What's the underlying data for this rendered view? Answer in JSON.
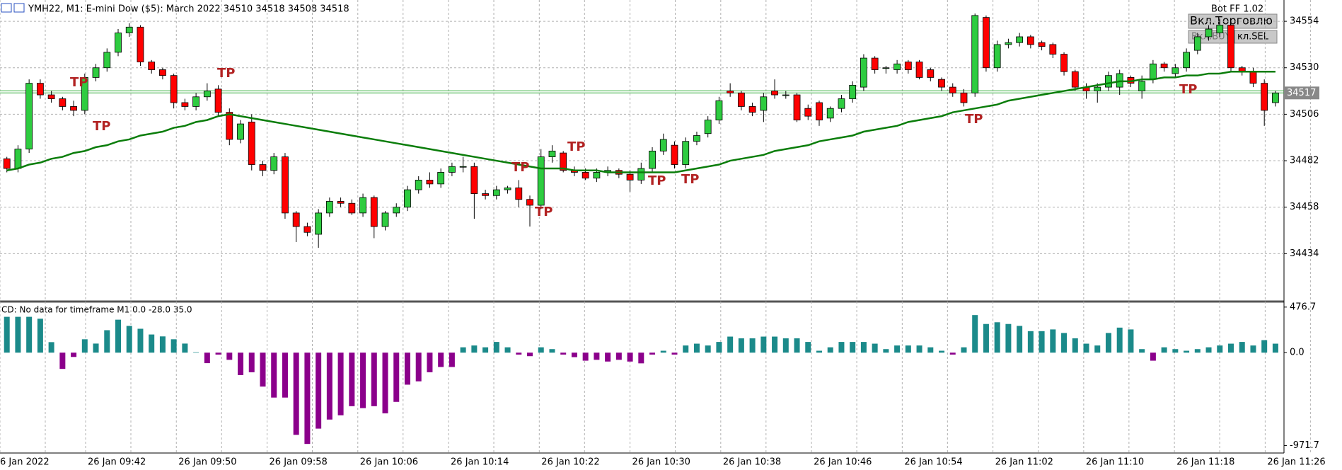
{
  "chart_data": {
    "type": "candlestick",
    "title": "YMH22, M1:  E-mini Dow ($5): March 2022  34510 34518 34508 34518",
    "bot_label": "Bot FF 1.02",
    "buttons": [
      "Вкл.Торговлю",
      "Вкл.BUY",
      "кл.SEL"
    ],
    "current_price": 34517,
    "up_color": "#2ecc40",
    "down_color": "#ff0000",
    "ylim": [
      34410,
      34565
    ],
    "yticks": [
      34434,
      34458,
      34482,
      34506,
      34530,
      34554
    ],
    "grid": true,
    "xlabels": [
      "6 Jan 2022",
      "26 Jan 09:42",
      "26 Jan 09:50",
      "26 Jan 09:58",
      "26 Jan 10:06",
      "26 Jan 10:14",
      "26 Jan 10:22",
      "26 Jan 10:30",
      "26 Jan 10:38",
      "26 Jan 10:46",
      "26 Jan 10:54",
      "26 Jan 11:02",
      "26 Jan 11:10",
      "26 Jan 11:18",
      "26 Jan 11:26"
    ],
    "candles": [
      [
        34483,
        34484,
        34476,
        34478
      ],
      [
        34478,
        34490,
        34476,
        34488
      ],
      [
        34488,
        34524,
        34486,
        34522
      ],
      [
        34522,
        34524,
        34514,
        34516
      ],
      [
        34516,
        34518,
        34512,
        34514
      ],
      [
        34514,
        34515,
        34508,
        34510
      ],
      [
        34510,
        34513,
        34505,
        34508
      ],
      [
        34508,
        34527,
        34506,
        34525
      ],
      [
        34525,
        34532,
        34523,
        34530
      ],
      [
        34530,
        34540,
        34528,
        34538
      ],
      [
        34538,
        34550,
        34536,
        34548
      ],
      [
        34548,
        34553,
        34546,
        34551
      ],
      [
        34551,
        34552,
        34531,
        34533
      ],
      [
        34533,
        34534,
        34527,
        34529
      ],
      [
        34529,
        34530,
        34524,
        34526
      ],
      [
        34526,
        34527,
        34509,
        34512
      ],
      [
        34512,
        34514,
        34508,
        34510
      ],
      [
        34510,
        34517,
        34508,
        34515
      ],
      [
        34515,
        34522,
        34513,
        34518
      ],
      [
        34519,
        34521,
        34505,
        34507
      ],
      [
        34507,
        34509,
        34490,
        34493
      ],
      [
        34493,
        34503,
        34491,
        34501
      ],
      [
        34502,
        34506,
        34477,
        34480
      ],
      [
        34480,
        34482,
        34474,
        34477
      ],
      [
        34477,
        34486,
        34475,
        34484
      ],
      [
        34484,
        34486,
        34452,
        34455
      ],
      [
        34455,
        34456,
        34440,
        34448
      ],
      [
        34448,
        34450,
        34443,
        34445
      ],
      [
        34444,
        34457,
        34437,
        34455
      ],
      [
        34455,
        34463,
        34453,
        34461
      ],
      [
        34461,
        34463,
        34458,
        34460
      ],
      [
        34460,
        34462,
        34454,
        34455
      ],
      [
        34455,
        34465,
        34453,
        34463
      ],
      [
        34463,
        34464,
        34442,
        34448
      ],
      [
        34448,
        34456,
        34446,
        34455
      ],
      [
        34455,
        34460,
        34453,
        34458
      ],
      [
        34458,
        34469,
        34456,
        34467
      ],
      [
        34467,
        34474,
        34465,
        34472
      ],
      [
        34472,
        34476,
        34468,
        34470
      ],
      [
        34470,
        34478,
        34468,
        34476
      ],
      [
        34476,
        34481,
        34474,
        34479
      ],
      [
        34479,
        34484,
        34476,
        34479
      ],
      [
        34479,
        34481,
        34452,
        34465
      ],
      [
        34465,
        34467,
        34462,
        34464
      ],
      [
        34464,
        34469,
        34462,
        34467
      ],
      [
        34467,
        34469,
        34465,
        34468
      ],
      [
        34468,
        34472,
        34458,
        34462
      ],
      [
        34462,
        34464,
        34448,
        34459
      ],
      [
        34459,
        34488,
        34457,
        34484
      ],
      [
        34484,
        34490,
        34481,
        34487
      ],
      [
        34486,
        34487,
        34476,
        34477
      ],
      [
        34477,
        34479,
        34474,
        34476
      ],
      [
        34476,
        34478,
        34472,
        34473
      ],
      [
        34473,
        34478,
        34471,
        34476
      ],
      [
        34476,
        34479,
        34474,
        34477
      ],
      [
        34477,
        34478,
        34473,
        34475
      ],
      [
        34475,
        34477,
        34466,
        34472
      ],
      [
        34472,
        34481,
        34470,
        34478
      ],
      [
        34478,
        34489,
        34476,
        34487
      ],
      [
        34487,
        34496,
        34485,
        34493
      ],
      [
        34490,
        34492,
        34478,
        34480
      ],
      [
        34480,
        34494,
        34478,
        34492
      ],
      [
        34492,
        34497,
        34490,
        34495
      ],
      [
        34496,
        34505,
        34494,
        34503
      ],
      [
        34503,
        34515,
        34501,
        34513
      ],
      [
        34518,
        34522,
        34515,
        34517
      ],
      [
        34517,
        34518,
        34508,
        34510
      ],
      [
        34510,
        34512,
        34505,
        34507
      ],
      [
        34508,
        34517,
        34502,
        34515
      ],
      [
        34518,
        34524,
        34514,
        34516
      ],
      [
        34516,
        34518,
        34514,
        34516
      ],
      [
        34516,
        34517,
        34502,
        34503
      ],
      [
        34509,
        34511,
        34503,
        34505
      ],
      [
        34512,
        34513,
        34500,
        34503
      ],
      [
        34504,
        34510,
        34502,
        34509
      ],
      [
        34509,
        34516,
        34507,
        34514
      ],
      [
        34514,
        34523,
        34512,
        34521
      ],
      [
        34520,
        34537,
        34518,
        34535
      ],
      [
        34535,
        34536,
        34527,
        34529
      ],
      [
        34530,
        34531,
        34527,
        34530
      ],
      [
        34529,
        34534,
        34527,
        34532
      ],
      [
        34533,
        34534,
        34527,
        34529
      ],
      [
        34533,
        34534,
        34524,
        34525
      ],
      [
        34529,
        34530,
        34523,
        34525
      ],
      [
        34524,
        34525,
        34518,
        34520
      ],
      [
        34520,
        34522,
        34515,
        34517
      ],
      [
        34517,
        34519,
        34510,
        34512
      ],
      [
        34517,
        34558,
        34515,
        34557
      ],
      [
        34556,
        34557,
        34528,
        34530
      ],
      [
        34530,
        34544,
        34528,
        34542
      ],
      [
        34542,
        34545,
        34540,
        34543
      ],
      [
        34543,
        34548,
        34541,
        34546
      ],
      [
        34546,
        34547,
        34540,
        34542
      ],
      [
        34543,
        34544,
        34539,
        34541
      ],
      [
        34542,
        34543,
        34535,
        34537
      ],
      [
        34537,
        34538,
        34526,
        34528
      ],
      [
        34528,
        34529,
        34518,
        34520
      ],
      [
        34520,
        34522,
        34514,
        34518
      ],
      [
        34518,
        34522,
        34512,
        34520
      ],
      [
        34520,
        34528,
        34518,
        34526
      ],
      [
        34520,
        34529,
        34516,
        34527
      ],
      [
        34525,
        34526,
        34520,
        34522
      ],
      [
        34518,
        34526,
        34514,
        34523
      ],
      [
        34524,
        34534,
        34522,
        34532
      ],
      [
        34532,
        34533,
        34528,
        34530
      ],
      [
        34527,
        34532,
        34525,
        34530
      ],
      [
        34530,
        34540,
        34528,
        34538
      ],
      [
        34539,
        34548,
        34537,
        34546
      ],
      [
        34546,
        34552,
        34544,
        34550
      ],
      [
        34548,
        34555,
        34546,
        34552
      ],
      [
        34552,
        34554,
        34528,
        34530
      ],
      [
        34530,
        34531,
        34526,
        34528
      ],
      [
        34528,
        34530,
        34520,
        34522
      ],
      [
        34522,
        34524,
        34500,
        34508
      ],
      [
        34512,
        34518,
        34510,
        34517
      ]
    ],
    "ma": {
      "color": "#0a7d0a",
      "values": [
        34477,
        34478,
        34480,
        34481,
        34483,
        34484,
        34486,
        34487,
        34489,
        34490,
        34492,
        34493,
        34495,
        34496,
        34497,
        34499,
        34500,
        34502,
        34503,
        34505,
        34506,
        34505,
        34504,
        34503,
        34502,
        34501,
        34500,
        34499,
        34498,
        34497,
        34496,
        34495,
        34494,
        34493,
        34492,
        34491,
        34490,
        34489,
        34488,
        34487,
        34486,
        34485,
        34484,
        34483,
        34482,
        34481,
        34480,
        34479,
        34478,
        34478,
        34478,
        34477,
        34477,
        34477,
        34476,
        34476,
        34476,
        34476,
        34476,
        34476,
        34476,
        34477,
        34478,
        34479,
        34480,
        34482,
        34483,
        34484,
        34485,
        34487,
        34488,
        34489,
        34490,
        34492,
        34493,
        34494,
        34495,
        34497,
        34498,
        34499,
        34500,
        34502,
        34503,
        34504,
        34505,
        34507,
        34508,
        34509,
        34510,
        34511,
        34513,
        34514,
        34515,
        34516,
        34517,
        34518,
        34519,
        34520,
        34521,
        34522,
        34523,
        34523,
        34524,
        34524,
        34525,
        34525,
        34526,
        34526,
        34527,
        34527,
        34528,
        34528,
        34528,
        34528,
        34528
      ]
    },
    "tp_labels": [
      "TP",
      "TP",
      "TP",
      "TP",
      "TP",
      "TP",
      "TP",
      "TP",
      "TP",
      "TP"
    ],
    "indicator": {
      "type": "histogram",
      "label": "CD: No data for timeframe M1 0.0 -28.0 35.0",
      "pos_color": "#1b8a8a",
      "neg_color": "#8b008b",
      "ylim": [
        -1050,
        520
      ],
      "yticks": [
        476.7,
        {
          "value": 0,
          "label": "0.0"
        },
        -971.7
      ],
      "values": [
        375,
        375,
        375,
        355,
        110,
        -170,
        -45,
        140,
        95,
        235,
        345,
        280,
        250,
        190,
        170,
        140,
        95,
        5,
        -110,
        -20,
        -75,
        -235,
        -205,
        -355,
        -470,
        -470,
        -860,
        -955,
        -795,
        -700,
        -655,
        -560,
        -580,
        -560,
        -635,
        -515,
        -335,
        -300,
        -205,
        -150,
        -150,
        56,
        75,
        56,
        112,
        56,
        -20,
        -37,
        56,
        37,
        -20,
        -47,
        -84,
        -75,
        -93,
        -75,
        -93,
        -112,
        -20,
        20,
        -20,
        75,
        94,
        75,
        112,
        168,
        150,
        150,
        168,
        168,
        150,
        150,
        112,
        20,
        56,
        112,
        112,
        112,
        94,
        37,
        75,
        75,
        75,
        56,
        20,
        -20,
        56,
        393,
        300,
        318,
        300,
        280,
        225,
        225,
        243,
        206,
        150,
        94,
        75,
        206,
        262,
        243,
        37,
        -84,
        56,
        37,
        20,
        37,
        56,
        75,
        94,
        112,
        75,
        131,
        94
      ]
    }
  }
}
